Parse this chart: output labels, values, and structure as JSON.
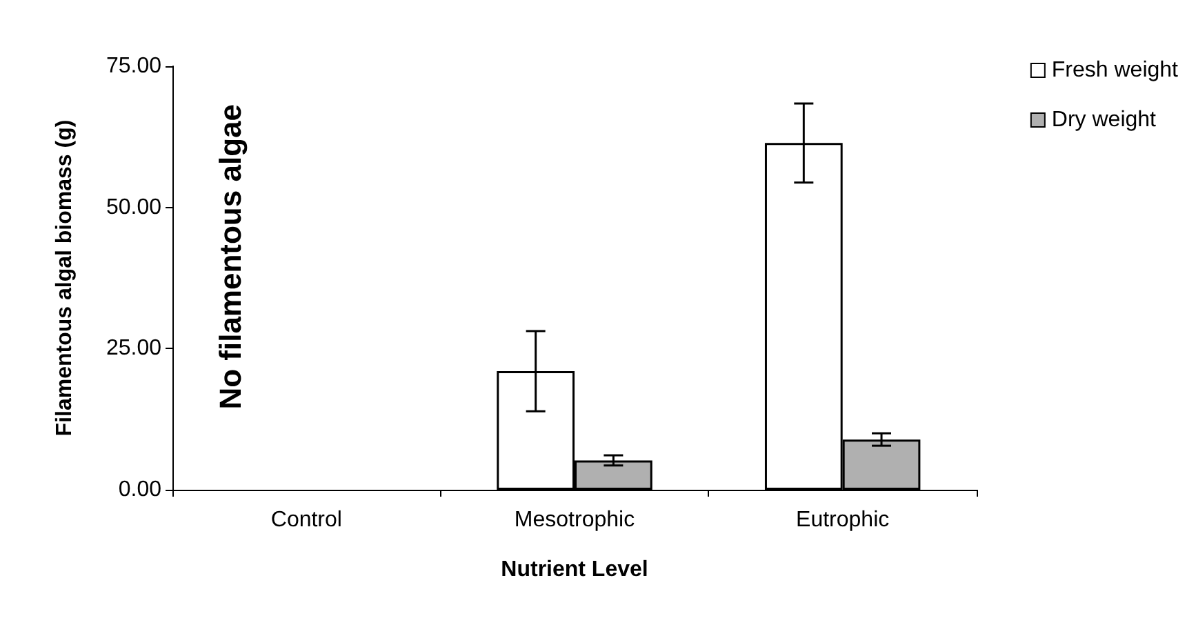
{
  "chart_data": {
    "type": "bar",
    "xlabel": "Nutrient Level",
    "ylabel": "Filamentous algal biomass (g)",
    "categories": [
      "Control",
      "Mesotrophic",
      "Eutrophic"
    ],
    "series": [
      {
        "name": "Fresh weight",
        "color": "#ffffff",
        "values": [
          0,
          21.0,
          61.4
        ],
        "errors": [
          null,
          7.1,
          7.0
        ]
      },
      {
        "name": "Dry weight",
        "color": "#b0b0b0",
        "values": [
          0,
          5.2,
          8.9
        ],
        "errors": [
          null,
          0.9,
          1.1
        ]
      }
    ],
    "ylim": [
      0,
      75
    ],
    "yticks": [
      {
        "value": 0,
        "label": "0.00"
      },
      {
        "value": 25,
        "label": "25.00"
      },
      {
        "value": 50,
        "label": "50.00"
      },
      {
        "value": 75,
        "label": "75.00"
      }
    ],
    "annotations": [
      "No filamentous algae"
    ],
    "grid": false,
    "legend": "top right"
  }
}
